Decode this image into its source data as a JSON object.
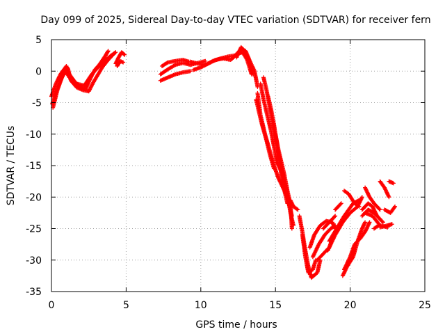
{
  "chart_data": {
    "type": "scatter",
    "title": "Day 099 of 2025, Sidereal Day-to-day VTEC variation (SDTVAR) for receiver fern",
    "xlabel": "GPS time / hours",
    "ylabel": "SDTVAR / TECUs",
    "xlim": [
      0,
      25
    ],
    "ylim": [
      -35,
      5
    ],
    "xticks": [
      0,
      5,
      10,
      15,
      20,
      25
    ],
    "yticks": [
      5,
      0,
      -5,
      -10,
      -15,
      -20,
      -25,
      -30,
      -35
    ],
    "grid": true,
    "marker": "plus",
    "color": "#ff0000",
    "tracks": [
      [
        [
          0.0,
          -4.0
        ],
        [
          0.3,
          -2.0
        ],
        [
          0.6,
          -0.5
        ],
        [
          1.0,
          0.8
        ],
        [
          1.2,
          -0.5
        ],
        [
          1.6,
          -1.8
        ],
        [
          2.0,
          -2.6
        ],
        [
          2.3,
          -2.8
        ],
        [
          2.6,
          -1.2
        ],
        [
          2.9,
          0.2
        ],
        [
          3.2,
          1.0
        ],
        [
          3.6,
          2.4
        ],
        [
          3.8,
          3.2
        ]
      ],
      [
        [
          0.1,
          -5.8
        ],
        [
          0.4,
          -3.0
        ],
        [
          0.7,
          -1.0
        ],
        [
          1.1,
          0.5
        ],
        [
          1.3,
          -1.5
        ],
        [
          1.7,
          -2.6
        ],
        [
          2.1,
          -3.0
        ],
        [
          2.5,
          -3.2
        ],
        [
          2.8,
          -1.8
        ],
        [
          3.1,
          -0.6
        ],
        [
          3.4,
          0.6
        ],
        [
          3.8,
          1.8
        ],
        [
          4.2,
          2.8
        ]
      ],
      [
        [
          0.05,
          -5.2
        ],
        [
          0.5,
          -2.2
        ],
        [
          0.9,
          0.2
        ],
        [
          1.2,
          -1.0
        ],
        [
          1.7,
          -2.0
        ],
        [
          2.2,
          -2.3
        ],
        [
          2.7,
          -0.5
        ],
        [
          3.0,
          0.3
        ],
        [
          3.5,
          1.5
        ],
        [
          4.0,
          2.5
        ],
        [
          4.3,
          3.0
        ]
      ],
      [
        [
          4.3,
          1.2
        ],
        [
          4.5,
          2.2
        ],
        [
          4.7,
          3.0
        ],
        [
          4.9,
          2.6
        ]
      ],
      [
        [
          4.4,
          0.8
        ],
        [
          4.6,
          1.6
        ],
        [
          4.8,
          1.4
        ]
      ],
      [
        [
          7.3,
          -0.5
        ],
        [
          7.8,
          0.3
        ],
        [
          8.3,
          1.0
        ],
        [
          8.8,
          1.3
        ],
        [
          9.3,
          1.0
        ],
        [
          9.8,
          1.3
        ],
        [
          10.3,
          1.6
        ]
      ],
      [
        [
          7.3,
          -1.5
        ],
        [
          7.8,
          -1.0
        ],
        [
          8.3,
          -0.5
        ],
        [
          8.8,
          -0.2
        ],
        [
          9.3,
          0.0
        ]
      ],
      [
        [
          7.4,
          0.8
        ],
        [
          7.8,
          1.4
        ],
        [
          8.3,
          1.6
        ],
        [
          8.8,
          1.8
        ],
        [
          9.2,
          1.5
        ]
      ],
      [
        [
          9.3,
          1.5
        ],
        [
          9.8,
          1.2
        ],
        [
          10.3,
          1.0
        ],
        [
          10.8,
          1.6
        ],
        [
          11.3,
          2.0
        ],
        [
          11.8,
          2.3
        ],
        [
          12.3,
          2.5
        ],
        [
          12.7,
          3.5
        ],
        [
          13.0,
          3.2
        ],
        [
          13.3,
          1.5
        ],
        [
          13.6,
          0.0
        ],
        [
          13.8,
          -2.5
        ]
      ],
      [
        [
          9.5,
          0.2
        ],
        [
          10.0,
          0.6
        ],
        [
          10.5,
          1.2
        ],
        [
          11.0,
          1.8
        ],
        [
          11.5,
          2.0
        ],
        [
          12.0,
          1.8
        ],
        [
          12.5,
          2.8
        ],
        [
          12.8,
          3.0
        ],
        [
          13.1,
          1.8
        ],
        [
          13.4,
          -0.5
        ]
      ],
      [
        [
          12.4,
          2.2
        ],
        [
          12.7,
          3.8
        ],
        [
          12.9,
          3.3
        ],
        [
          13.2,
          2.0
        ],
        [
          13.5,
          -0.5
        ]
      ],
      [
        [
          13.8,
          -3.5
        ],
        [
          14.0,
          -7.0
        ],
        [
          14.3,
          -10.0
        ],
        [
          14.6,
          -12.5
        ],
        [
          14.9,
          -15.0
        ],
        [
          15.2,
          -17.0
        ],
        [
          15.5,
          -18.5
        ],
        [
          15.8,
          -20.0
        ],
        [
          16.0,
          -21.5
        ]
      ],
      [
        [
          14.0,
          -2.0
        ],
        [
          14.2,
          -4.5
        ],
        [
          14.4,
          -6.5
        ],
        [
          14.7,
          -9.5
        ],
        [
          14.9,
          -12.0
        ],
        [
          15.1,
          -14.5
        ],
        [
          15.4,
          -16.0
        ],
        [
          15.6,
          -18.5
        ],
        [
          15.9,
          -21.0
        ],
        [
          16.1,
          -23.0
        ]
      ],
      [
        [
          14.2,
          -1.0
        ],
        [
          14.4,
          -3.0
        ],
        [
          14.6,
          -5.5
        ],
        [
          14.8,
          -8.0
        ],
        [
          15.0,
          -10.5
        ],
        [
          15.2,
          -13.0
        ],
        [
          15.4,
          -15.0
        ],
        [
          15.6,
          -17.5
        ],
        [
          15.8,
          -19.5
        ],
        [
          16.0,
          -22.5
        ],
        [
          16.2,
          -24.5
        ]
      ],
      [
        [
          13.7,
          -4.5
        ],
        [
          13.9,
          -6.5
        ],
        [
          14.1,
          -8.5
        ],
        [
          14.4,
          -11.0
        ],
        [
          14.6,
          -13.0
        ],
        [
          14.9,
          -15.5
        ]
      ],
      [
        [
          15.0,
          -10.0
        ],
        [
          15.2,
          -12.5
        ],
        [
          15.4,
          -14.5
        ],
        [
          15.6,
          -16.5
        ],
        [
          15.8,
          -19.0
        ],
        [
          16.0,
          -21.0
        ],
        [
          16.1,
          -25.0
        ]
      ],
      [
        [
          14.5,
          -4.0
        ],
        [
          14.7,
          -6.0
        ],
        [
          14.9,
          -8.5
        ],
        [
          15.1,
          -11.5
        ],
        [
          15.3,
          -15.0
        ],
        [
          15.5,
          -18.0
        ],
        [
          15.8,
          -21.0
        ]
      ],
      [
        [
          16.0,
          -20.5
        ],
        [
          16.2,
          -21.5
        ],
        [
          16.5,
          -22.0
        ]
      ],
      [
        [
          16.6,
          -23.0
        ],
        [
          16.8,
          -25.5
        ],
        [
          17.0,
          -28.5
        ],
        [
          17.2,
          -31.0
        ],
        [
          17.4,
          -32.8
        ],
        [
          17.8,
          -32.0
        ],
        [
          18.0,
          -30.0
        ]
      ],
      [
        [
          16.8,
          -26.0
        ],
        [
          17.0,
          -29.5
        ],
        [
          17.2,
          -32.0
        ],
        [
          17.5,
          -31.5
        ],
        [
          17.7,
          -30.0
        ]
      ],
      [
        [
          17.3,
          -28.0
        ],
        [
          17.6,
          -26.0
        ],
        [
          18.0,
          -24.5
        ],
        [
          18.4,
          -23.8
        ],
        [
          18.8,
          -24.0
        ],
        [
          19.0,
          -25.0
        ]
      ],
      [
        [
          17.5,
          -29.5
        ],
        [
          17.9,
          -27.5
        ],
        [
          18.3,
          -26.0
        ],
        [
          18.7,
          -25.0
        ],
        [
          19.0,
          -24.5
        ]
      ],
      [
        [
          17.8,
          -30.0
        ],
        [
          18.2,
          -29.0
        ],
        [
          18.6,
          -28.0
        ],
        [
          18.9,
          -26.0
        ]
      ],
      [
        [
          18.2,
          -25.0
        ],
        [
          18.6,
          -24.0
        ],
        [
          19.0,
          -23.0
        ]
      ],
      [
        [
          18.5,
          -28.5
        ],
        [
          19.0,
          -26.0
        ],
        [
          19.5,
          -24.0
        ],
        [
          20.0,
          -22.5
        ],
        [
          20.5,
          -21.5
        ],
        [
          20.8,
          -20.0
        ]
      ],
      [
        [
          18.6,
          -27.0
        ],
        [
          19.1,
          -25.0
        ],
        [
          19.6,
          -23.0
        ],
        [
          20.2,
          -21.0
        ],
        [
          20.6,
          -20.5
        ]
      ],
      [
        [
          19.5,
          -32.5
        ],
        [
          19.8,
          -31.0
        ],
        [
          20.2,
          -29.5
        ],
        [
          20.5,
          -27.0
        ],
        [
          20.8,
          -25.0
        ],
        [
          21.0,
          -24.0
        ]
      ],
      [
        [
          19.6,
          -31.5
        ],
        [
          20.0,
          -29.5
        ],
        [
          20.3,
          -27.5
        ],
        [
          20.7,
          -26.5
        ],
        [
          21.0,
          -25.5
        ],
        [
          21.3,
          -24.0
        ]
      ],
      [
        [
          19.0,
          -22.0
        ],
        [
          19.4,
          -21.0
        ]
      ],
      [
        [
          19.6,
          -19.0
        ],
        [
          19.9,
          -19.5
        ],
        [
          20.3,
          -21.0
        ],
        [
          20.6,
          -21.5
        ]
      ],
      [
        [
          20.8,
          -22.0
        ],
        [
          21.2,
          -21.0
        ],
        [
          21.5,
          -21.5
        ],
        [
          21.8,
          -23.0
        ],
        [
          22.2,
          -24.0
        ]
      ],
      [
        [
          21.0,
          -22.5
        ],
        [
          21.5,
          -23.0
        ],
        [
          22.0,
          -24.5
        ],
        [
          22.5,
          -24.8
        ]
      ],
      [
        [
          20.8,
          -23.0
        ],
        [
          21.2,
          -22.0
        ],
        [
          21.6,
          -22.5
        ],
        [
          22.0,
          -23.5
        ]
      ],
      [
        [
          21.0,
          -18.5
        ],
        [
          21.3,
          -20.0
        ],
        [
          21.6,
          -21.0
        ],
        [
          22.0,
          -22.0
        ]
      ],
      [
        [
          22.0,
          -17.5
        ],
        [
          22.3,
          -18.5
        ],
        [
          22.6,
          -20.0
        ]
      ],
      [
        [
          22.3,
          -22.0
        ],
        [
          22.7,
          -22.5
        ],
        [
          23.0,
          -21.5
        ]
      ],
      [
        [
          22.6,
          -17.5
        ],
        [
          22.9,
          -17.8
        ]
      ],
      [
        [
          22.0,
          -24.8
        ],
        [
          22.5,
          -24.5
        ],
        [
          22.8,
          -24.3
        ]
      ],
      [
        [
          21.6,
          -25.0
        ],
        [
          21.9,
          -24.5
        ]
      ]
    ]
  }
}
